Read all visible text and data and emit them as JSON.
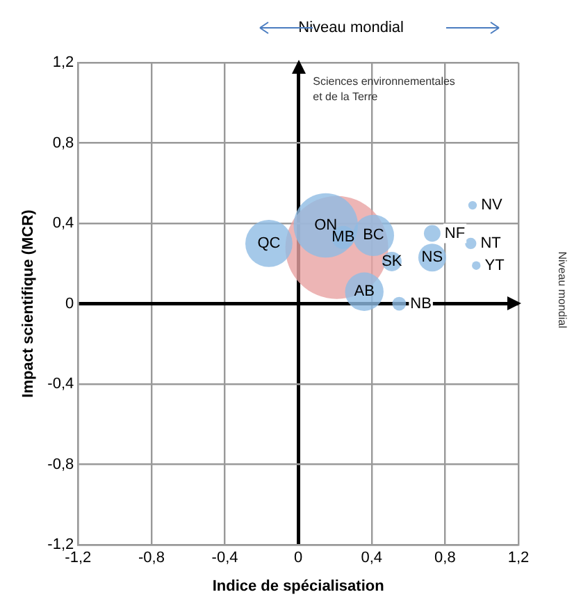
{
  "chart_data": {
    "type": "bubble",
    "xlabel": "Indice de spécialisation",
    "ylabel": "Impact scientifique (MCR)",
    "annotations": [
      "Niveau mondial",
      "Sciences environnementales\net de la Terre",
      "Niveau mondial"
    ],
    "series": [
      {
        "color": "#8fbbe3",
        "x": [
          -0.16,
          0.15,
          0.245,
          0.41,
          0.51,
          0.36,
          0.55,
          0.73,
          0.73,
          0.95,
          0.94,
          0.97
        ],
        "values": [
          0.3,
          0.39,
          0.33,
          0.34,
          0.21,
          0.06,
          0.0,
          0.35,
          0.23,
          0.49,
          0.3,
          0.19
        ],
        "sizes": [
          0.21,
          0.39,
          0.05,
          0.16,
          0.036,
          0.14,
          0.018,
          0.026,
          0.073,
          0.007,
          0.012,
          0.007
        ],
        "value_labels": [
          "QC",
          "ON",
          "MB",
          "BC",
          "SK",
          "AB",
          "NB",
          "NF",
          "NS",
          "NV",
          "NT",
          "YT"
        ]
      },
      {
        "color": "#e8a2a2",
        "x": [
          0.21
        ],
        "values": [
          0.28
        ],
        "sizes": [
          1
        ]
      }
    ],
    "xlim": [
      -1.2,
      1.2
    ],
    "ylim": [
      -1.2,
      1.2
    ],
    "xticks": [
      {
        "value": -1.2,
        "label": "-1,2"
      },
      {
        "value": -0.8,
        "label": "-0,8"
      },
      {
        "value": -0.4,
        "label": "-0,4"
      },
      0,
      {
        "value": 0.4,
        "label": "0,4"
      },
      {
        "value": 0.8,
        "label": "0,8"
      },
      {
        "value": 1.2,
        "label": "1,2"
      }
    ],
    "yticks": [
      {
        "value": -1.2,
        "label": "-1,2"
      },
      {
        "value": -0.8,
        "label": "-0,8"
      },
      {
        "value": -0.4,
        "label": "-0,4"
      },
      0,
      {
        "value": 0.4,
        "label": "0,4"
      },
      {
        "value": 0.8,
        "label": "0,8"
      },
      {
        "value": 1.2,
        "label": "1,2"
      }
    ],
    "grid": true,
    "legend": false
  }
}
